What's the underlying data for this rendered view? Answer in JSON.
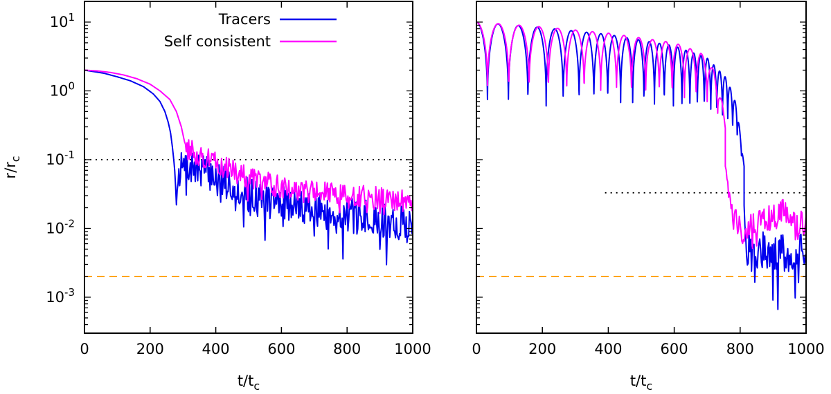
{
  "chart_data": [
    {
      "type": "line",
      "panel": "left",
      "title": "",
      "xlabel": "t/t",
      "xlabel_sub": "c",
      "ylabel": "r/r",
      "ylabel_sub": "c",
      "yscale": "log",
      "xlim": [
        0,
        1000
      ],
      "ylim": [
        0.0003,
        20
      ],
      "xticks": [
        0,
        200,
        400,
        600,
        800,
        1000
      ],
      "xtick_labels": [
        "0",
        "200",
        "400",
        "600",
        "800",
        "1000"
      ],
      "yticks": [
        {
          "value": 10,
          "base": "10",
          "exp": "1"
        },
        {
          "value": 1,
          "base": "10",
          "exp": "0"
        },
        {
          "value": 0.1,
          "base": "10",
          "exp": "-1"
        },
        {
          "value": 0.01,
          "base": "10",
          "exp": "-2"
        },
        {
          "value": 0.001,
          "base": "10",
          "exp": "-3"
        }
      ],
      "reference_lines": [
        {
          "name": "dotted-black",
          "y": 0.1,
          "color": "#000000",
          "style": "dotted",
          "x_start": 0
        },
        {
          "name": "dashed-orange",
          "y": 0.002,
          "color": "#ffa500",
          "style": "dashed",
          "x_start": 0
        }
      ],
      "series": [
        {
          "name": "Tracers",
          "color": "#0000ee",
          "x": [
            0,
            30,
            60,
            100,
            140,
            180,
            210,
            230,
            245,
            255,
            262,
            268,
            272,
            276,
            280,
            285,
            290,
            300,
            320,
            340,
            360,
            380,
            400,
            440,
            480,
            520,
            560,
            600,
            640,
            680,
            720,
            760,
            800,
            840,
            880,
            920,
            960,
            1000
          ],
          "y": [
            2.0,
            1.9,
            1.8,
            1.6,
            1.4,
            1.15,
            0.9,
            0.7,
            0.5,
            0.35,
            0.25,
            0.15,
            0.1,
            0.06,
            0.022,
            0.06,
            0.07,
            0.075,
            0.08,
            0.07,
            0.075,
            0.06,
            0.06,
            0.045,
            0.035,
            0.03,
            0.027,
            0.024,
            0.022,
            0.02,
            0.018,
            0.017,
            0.016,
            0.015,
            0.014,
            0.013,
            0.012,
            0.012
          ],
          "noise": {
            "start": 285,
            "amplitude": 0.45,
            "spikes": 0.6,
            "period": 2.5,
            "seed": 7
          }
        },
        {
          "name": "Self consistent",
          "color": "#ff00ff",
          "x": [
            0,
            40,
            80,
            120,
            160,
            200,
            230,
            260,
            280,
            295,
            305,
            315,
            330,
            360,
            400,
            440,
            480,
            520,
            560,
            600,
            640,
            680,
            720,
            760,
            800,
            840,
            880,
            920,
            960,
            1000
          ],
          "y": [
            2.0,
            1.95,
            1.85,
            1.7,
            1.5,
            1.25,
            1.0,
            0.75,
            0.5,
            0.3,
            0.18,
            0.14,
            0.13,
            0.11,
            0.09,
            0.075,
            0.06,
            0.05,
            0.045,
            0.04,
            0.038,
            0.035,
            0.033,
            0.032,
            0.03,
            0.029,
            0.028,
            0.027,
            0.026,
            0.025
          ],
          "noise": {
            "start": 310,
            "amplitude": 0.3,
            "spikes": 0.25,
            "period": 2.5,
            "seed": 13
          }
        }
      ],
      "legend": {
        "position": "top-center",
        "entries": [
          {
            "label": "Tracers",
            "color": "#0000ee"
          },
          {
            "label": "Self consistent",
            "color": "#ff00ff"
          }
        ]
      }
    },
    {
      "type": "line",
      "panel": "right",
      "title": "",
      "xlabel": "t/t",
      "xlabel_sub": "c",
      "ylabel": "",
      "yscale": "log",
      "xlim": [
        0,
        1000
      ],
      "ylim": [
        0.0003,
        20
      ],
      "xticks": [
        0,
        200,
        400,
        600,
        800,
        1000
      ],
      "xtick_labels": [
        "0",
        "200",
        "400",
        "600",
        "800",
        "1000"
      ],
      "yticks": [
        10,
        1,
        0.1,
        0.01,
        0.001
      ],
      "reference_lines": [
        {
          "name": "dotted-black",
          "y": 0.033,
          "color": "#000000",
          "style": "dotted",
          "x_start": 390
        },
        {
          "name": "dashed-orange",
          "y": 0.002,
          "color": "#ffa500",
          "style": "dashed",
          "x_start": 0
        }
      ],
      "series": [
        {
          "name": "Tracers",
          "color": "#0000ee",
          "orbit": {
            "apo": {
              "x": [
                0,
                200,
                400,
                600,
                700,
                760,
                790,
                805,
                812
              ],
              "y": [
                10,
                8.3,
                6.6,
                4.5,
                3.0,
                1.5,
                0.6,
                0.15,
                0.08
              ]
            },
            "peri": {
              "x": [
                0,
                200,
                400,
                600,
                700,
                760,
                790,
                805,
                812
              ],
              "y": [
                0.5,
                0.5,
                0.5,
                0.45,
                0.35,
                0.25,
                0.15,
                0.09,
                0.08
              ]
            },
            "period_start": 68,
            "period_end": 12,
            "t_end": 812
          },
          "tail": {
            "x": [
              812,
              820,
              830,
              850,
              870,
              900,
              930,
              960,
              1000
            ],
            "y": [
              0.03,
              0.004,
              0.006,
              0.005,
              0.005,
              0.0045,
              0.0045,
              0.004,
              0.005
            ],
            "noise": {
              "amplitude": 0.5,
              "spikes": 0.8,
              "period": 2.5,
              "seed": 21
            }
          }
        },
        {
          "name": "Self consistent",
          "color": "#ff00ff",
          "orbit": {
            "apo": {
              "x": [
                0,
                200,
                400,
                600,
                680,
                720,
                745,
                755
              ],
              "y": [
                10,
                8.5,
                6.9,
                5.0,
                3.6,
                2.0,
                0.7,
                0.3
              ]
            },
            "peri": {
              "x": [
                0,
                200,
                400,
                600,
                680,
                720,
                745,
                755
              ],
              "y": [
                0.85,
                0.8,
                0.75,
                0.7,
                0.65,
                0.5,
                0.3,
                0.2
              ]
            },
            "period_start": 68,
            "period_end": 30,
            "t_end": 755
          },
          "tail": {
            "x": [
              755,
              770,
              790,
              810,
              830,
              850,
              880,
              910,
              940,
              970,
              1000
            ],
            "y": [
              0.1,
              0.02,
              0.012,
              0.009,
              0.01,
              0.012,
              0.014,
              0.015,
              0.02,
              0.012,
              0.012
            ],
            "noise": {
              "amplitude": 0.35,
              "spikes": 0.3,
              "period": 2.5,
              "seed": 33
            }
          }
        }
      ]
    }
  ]
}
